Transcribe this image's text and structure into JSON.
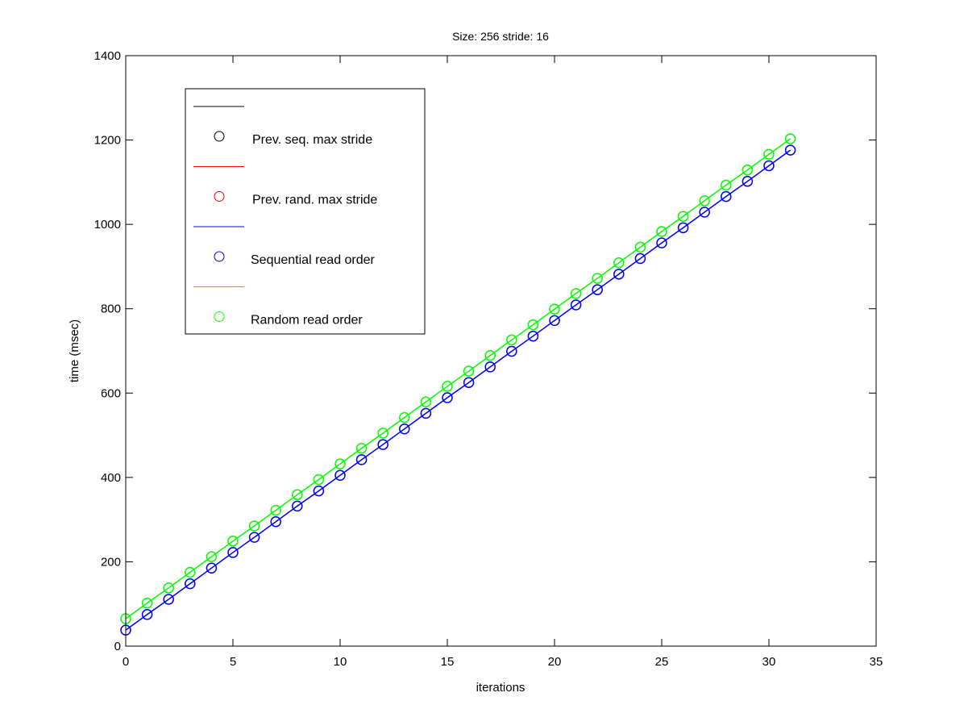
{
  "chart_data": {
    "type": "line",
    "title": "Size: 256 stride: 16",
    "xlabel": "iterations",
    "ylabel": "time (msec)",
    "xlim": [
      0,
      35
    ],
    "ylim": [
      0,
      1400
    ],
    "xticks": [
      0,
      5,
      10,
      15,
      20,
      25,
      30,
      35
    ],
    "yticks": [
      0,
      200,
      400,
      600,
      800,
      1000,
      1200,
      1400
    ],
    "grid": false,
    "legend_position": "top-left",
    "x": [
      0,
      1,
      2,
      3,
      4,
      5,
      6,
      7,
      8,
      9,
      10,
      11,
      12,
      13,
      14,
      15,
      16,
      17,
      18,
      19,
      20,
      21,
      22,
      23,
      24,
      25,
      26,
      27,
      28,
      29,
      30,
      31
    ],
    "series": [
      {
        "name": "Prev. seq. max stride",
        "color": "#000000",
        "marker": "circle",
        "values": [
          38,
          75,
          111,
          148,
          185,
          222,
          258,
          295,
          332,
          368,
          405,
          442,
          478,
          515,
          552,
          589,
          625,
          662,
          699,
          735,
          772,
          809,
          845,
          882,
          919,
          956,
          992,
          1029,
          1066,
          1102,
          1139,
          1176
        ]
      },
      {
        "name": "Prev. rand. max stride",
        "color": "#ff0000",
        "marker": "circle",
        "values": [
          65,
          102,
          138,
          175,
          212,
          249,
          285,
          322,
          359,
          395,
          432,
          469,
          505,
          542,
          579,
          616,
          652,
          689,
          726,
          762,
          799,
          836,
          872,
          909,
          946,
          983,
          1019,
          1056,
          1093,
          1129,
          1166,
          1203
        ]
      },
      {
        "name": "Sequential read order",
        "color": "#0000ff",
        "marker": "circle",
        "values": [
          38,
          75,
          111,
          148,
          185,
          222,
          258,
          295,
          332,
          368,
          405,
          442,
          478,
          515,
          552,
          589,
          625,
          662,
          699,
          735,
          772,
          809,
          845,
          882,
          919,
          956,
          992,
          1029,
          1066,
          1102,
          1139,
          1176
        ]
      },
      {
        "name": "Random read order",
        "color": "#00ff00",
        "marker": "circle",
        "values": [
          65,
          102,
          138,
          175,
          212,
          249,
          285,
          322,
          359,
          395,
          432,
          469,
          505,
          542,
          579,
          616,
          652,
          689,
          726,
          762,
          799,
          836,
          872,
          909,
          946,
          983,
          1019,
          1056,
          1093,
          1129,
          1166,
          1203
        ]
      }
    ]
  }
}
